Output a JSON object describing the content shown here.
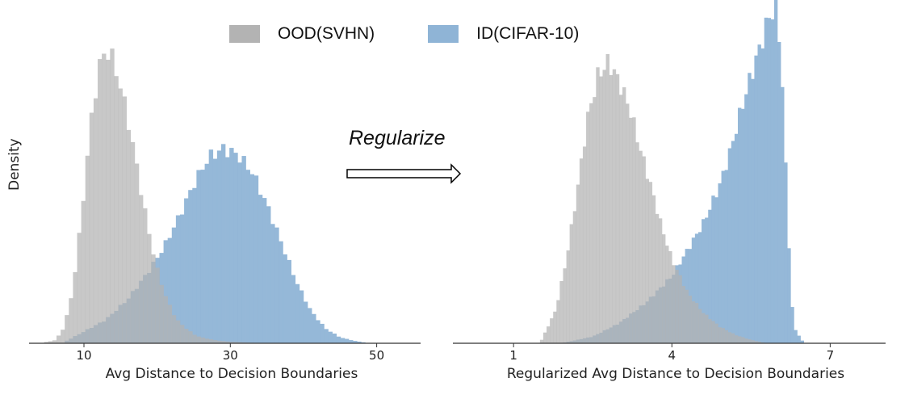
{
  "legend": {
    "ood_label": "OOD(SVHN)",
    "id_label": "ID(CIFAR-10)"
  },
  "colors": {
    "ood": "#b3b3b3",
    "id": "#8fb4d6",
    "overlap": "#8a97a6"
  },
  "arrow_label": "Regularize",
  "ylabel": "Density",
  "chart_data": [
    {
      "type": "histogram",
      "title": "",
      "xlabel": "Avg Distance to Decision Boundaries",
      "ylabel": "Density",
      "xlim": [
        2.5,
        56
      ],
      "xticks": [
        10,
        30,
        50
      ],
      "ylim": [
        0,
        1.0
      ],
      "series": [
        {
          "name": "OOD(SVHN)",
          "x": [
            4,
            6,
            7,
            8,
            9,
            10,
            11,
            12,
            13,
            14,
            15,
            16,
            17,
            18,
            19,
            20,
            21,
            22,
            23,
            24,
            25,
            26,
            27,
            28,
            30,
            33,
            36
          ],
          "density": [
            0.0,
            0.01,
            0.04,
            0.12,
            0.28,
            0.52,
            0.76,
            0.93,
            1.0,
            0.96,
            0.87,
            0.76,
            0.63,
            0.49,
            0.36,
            0.25,
            0.17,
            0.11,
            0.07,
            0.05,
            0.03,
            0.02,
            0.015,
            0.01,
            0.005,
            0.002,
            0.0
          ]
        },
        {
          "name": "ID(CIFAR-10)",
          "x": [
            7,
            10,
            13,
            16,
            19,
            21,
            23,
            25,
            27,
            29,
            31,
            33,
            35,
            37,
            39,
            41,
            43,
            45,
            47,
            49
          ],
          "density": [
            0.0,
            0.04,
            0.08,
            0.15,
            0.25,
            0.33,
            0.43,
            0.54,
            0.63,
            0.66,
            0.64,
            0.58,
            0.47,
            0.34,
            0.21,
            0.11,
            0.05,
            0.02,
            0.008,
            0.0
          ]
        }
      ]
    },
    {
      "type": "histogram",
      "title": "",
      "xlabel": "Regularized Avg Distance to Decision Boundaries",
      "ylabel": "Density",
      "xlim": [
        -0.15,
        8.05
      ],
      "xticks": [
        1,
        4,
        7
      ],
      "ylim": [
        0,
        1.0
      ],
      "series": [
        {
          "name": "OOD(SVHN)",
          "x": [
            1.5,
            1.8,
            2.0,
            2.2,
            2.4,
            2.6,
            2.8,
            3.0,
            3.2,
            3.4,
            3.6,
            3.8,
            4.0,
            4.3,
            4.6,
            4.9,
            5.2,
            5.5,
            5.8
          ],
          "density": [
            0.0,
            0.1,
            0.25,
            0.45,
            0.67,
            0.8,
            0.84,
            0.78,
            0.7,
            0.58,
            0.47,
            0.35,
            0.25,
            0.15,
            0.09,
            0.05,
            0.025,
            0.01,
            0.0
          ]
        },
        {
          "name": "ID(CIFAR-10)",
          "x": [
            1.9,
            2.5,
            3.0,
            3.5,
            4.0,
            4.3,
            4.6,
            4.9,
            5.1,
            5.3,
            5.5,
            5.7,
            5.85,
            6.0,
            6.1,
            6.2,
            6.3,
            6.5
          ],
          "density": [
            0.0,
            0.02,
            0.06,
            0.12,
            0.2,
            0.28,
            0.36,
            0.47,
            0.57,
            0.69,
            0.8,
            0.9,
            0.98,
            1.0,
            0.75,
            0.35,
            0.05,
            0.0
          ]
        }
      ]
    }
  ]
}
